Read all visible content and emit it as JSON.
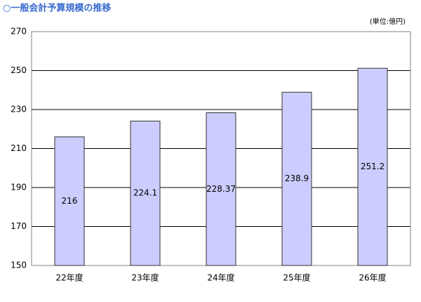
{
  "chart_data": {
    "type": "bar",
    "title": "○一般会計予算規模の推移",
    "unit_label": "(単位:億円)",
    "categories": [
      "22年度",
      "23年度",
      "24年度",
      "25年度",
      "26年度"
    ],
    "values": [
      216,
      224.1,
      228.37,
      238.9,
      251.2
    ],
    "color": "#ccccff",
    "ylim": [
      150,
      270
    ],
    "yticks": [
      150,
      170,
      190,
      210,
      230,
      250,
      270
    ],
    "grid": true
  }
}
